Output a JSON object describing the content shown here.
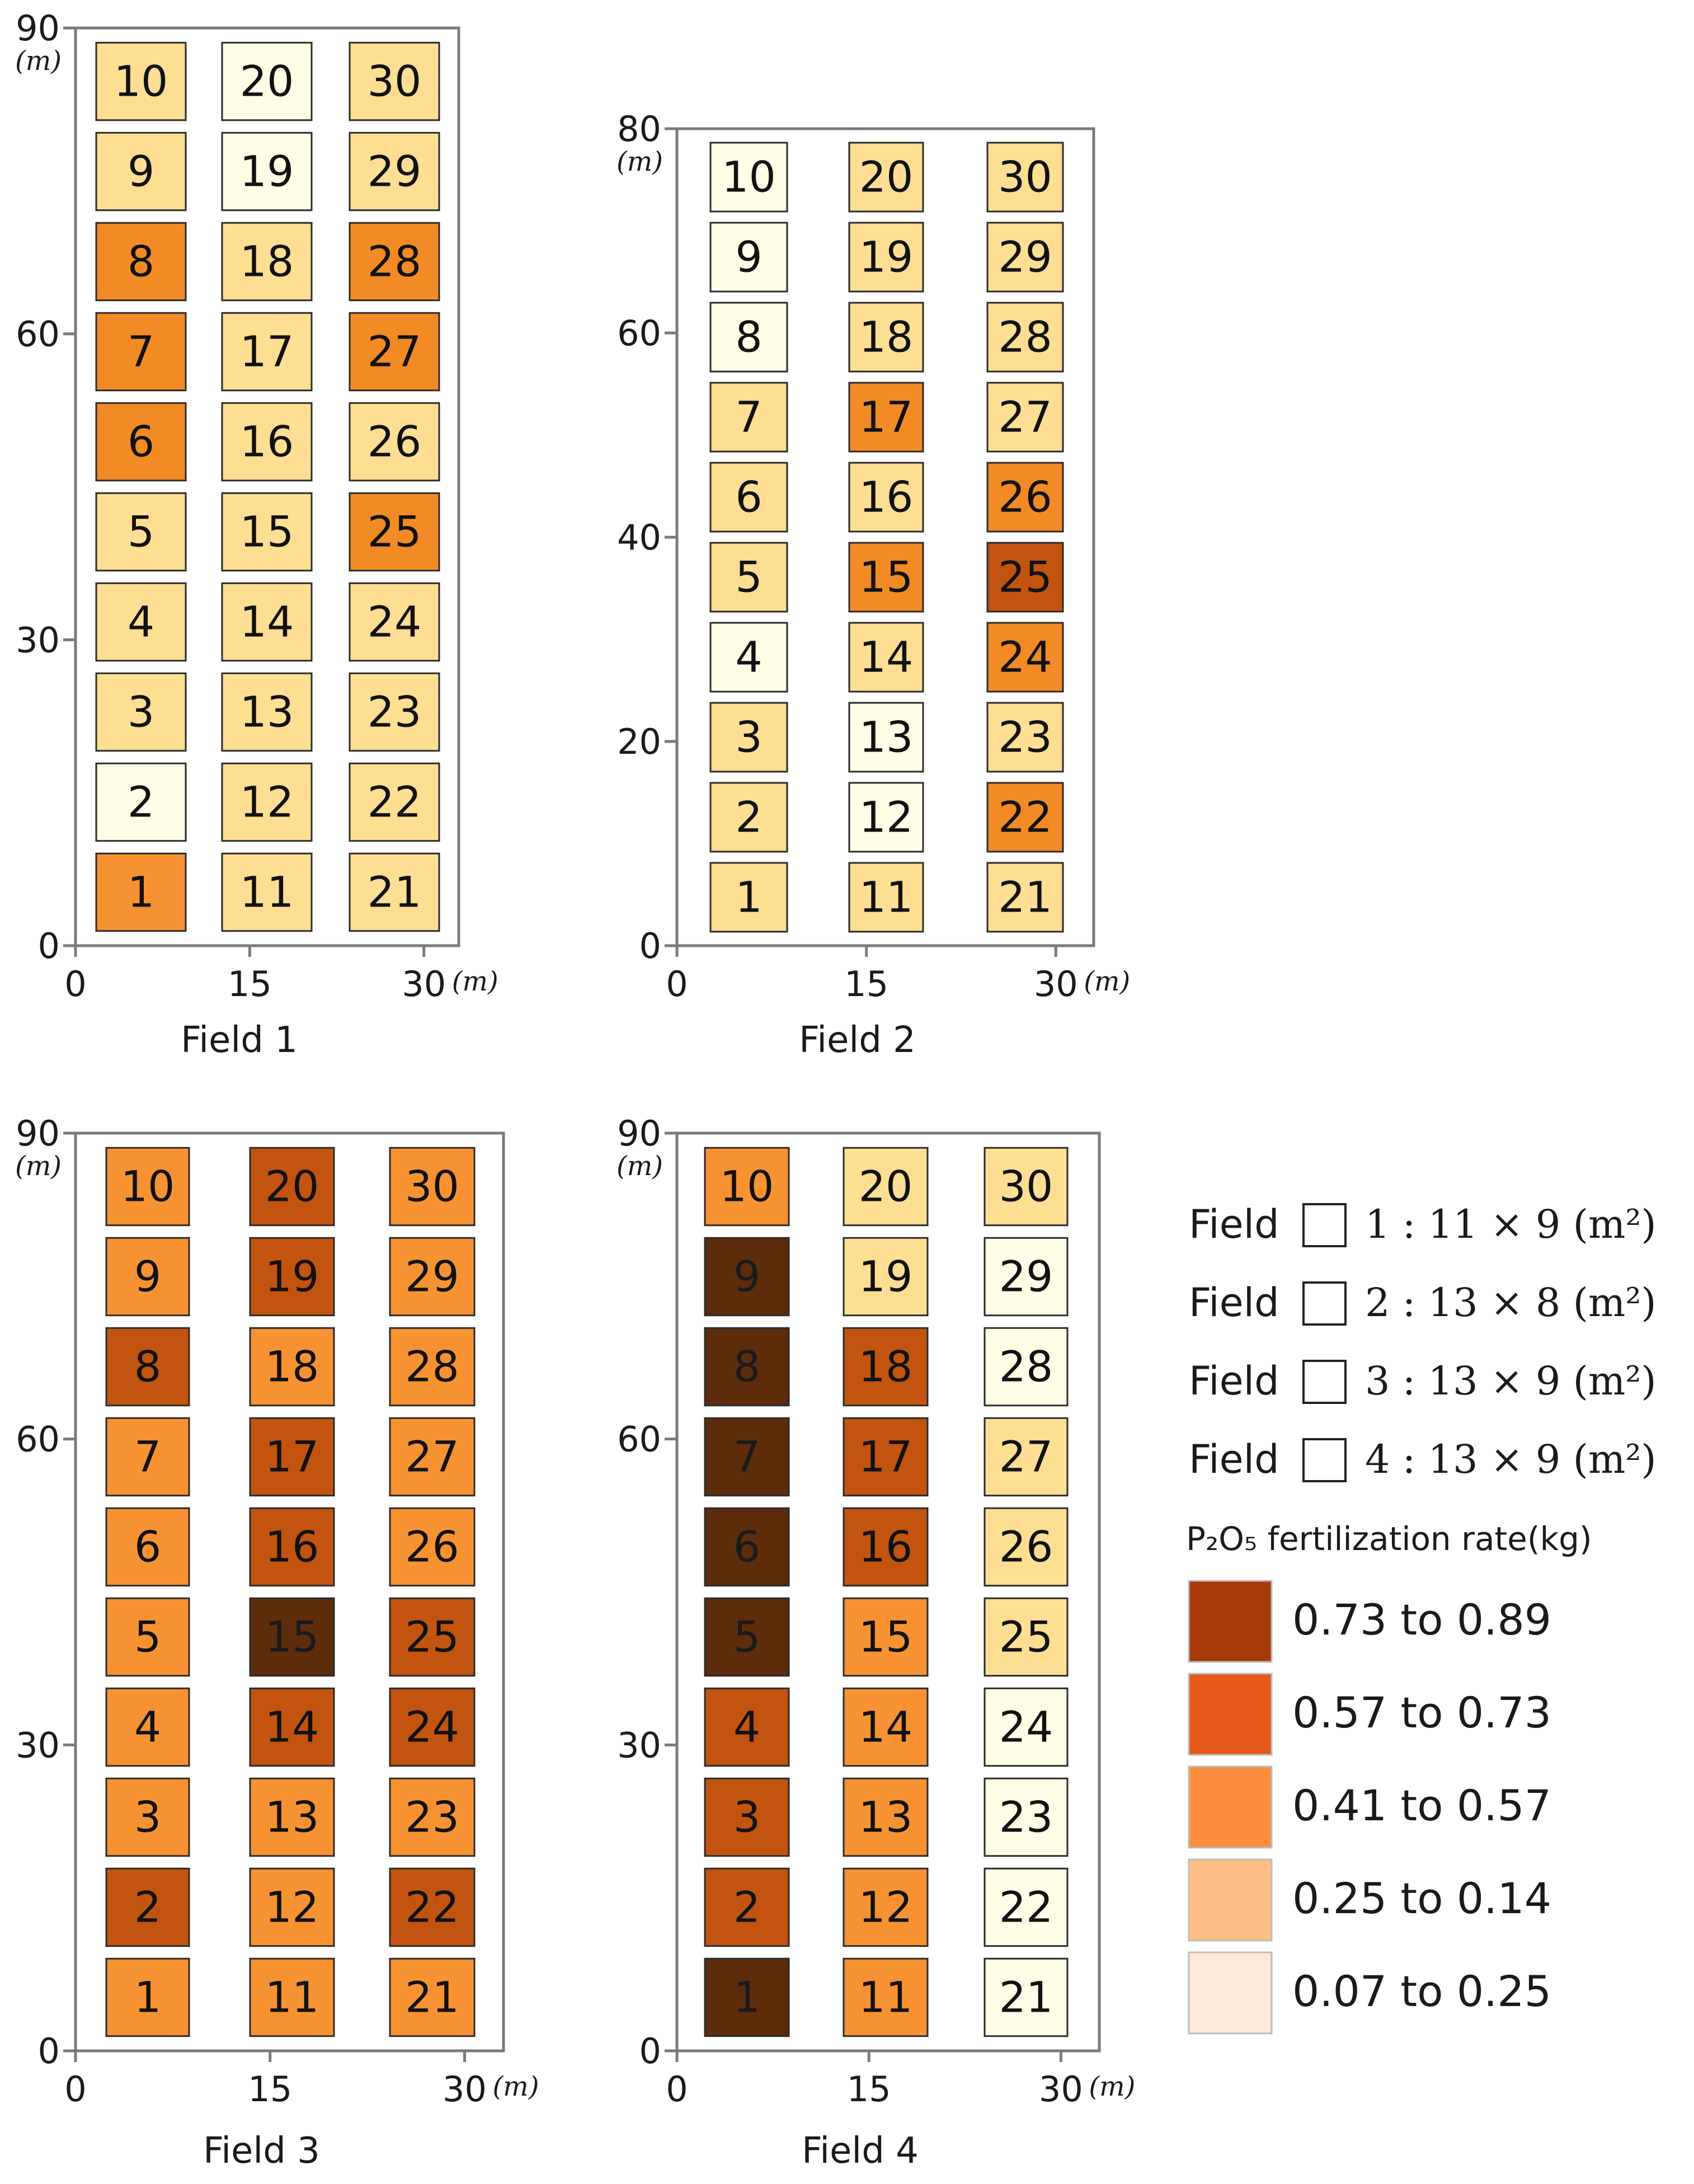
{
  "fields": [
    {
      "label": "Field 1",
      "axes": {
        "x_ticks": [
          "0",
          "15",
          "30"
        ],
        "y_ticks": [
          "0",
          "30",
          "60",
          "90"
        ],
        "y_max": 90,
        "unit": "(m)"
      },
      "plot_classes": [
        [
          "c",
          "d",
          "d"
        ],
        [
          "e",
          "d",
          "d"
        ],
        [
          "d",
          "d",
          "d"
        ],
        [
          "d",
          "d",
          "d"
        ],
        [
          "d",
          "d",
          "b"
        ],
        [
          "b",
          "d",
          "d"
        ],
        [
          "b",
          "d",
          "b"
        ],
        [
          "b",
          "d",
          "b"
        ],
        [
          "d",
          "e",
          "d"
        ],
        [
          "d",
          "e",
          "d"
        ]
      ]
    },
    {
      "label": "Field 2",
      "axes": {
        "x_ticks": [
          "0",
          "15",
          "30"
        ],
        "y_ticks": [
          "0",
          "20",
          "40",
          "60",
          "80"
        ],
        "y_max": 80,
        "unit": "(m)"
      },
      "plot_classes": [
        [
          "d",
          "d",
          "d"
        ],
        [
          "d",
          "e",
          "b"
        ],
        [
          "d",
          "e",
          "d"
        ],
        [
          "e",
          "d",
          "b"
        ],
        [
          "d",
          "b",
          "a"
        ],
        [
          "d",
          "d",
          "b"
        ],
        [
          "d",
          "b",
          "d"
        ],
        [
          "e",
          "d",
          "d"
        ],
        [
          "e",
          "d",
          "d"
        ],
        [
          "e",
          "d",
          "d"
        ]
      ]
    },
    {
      "label": "Field 3",
      "axes": {
        "x_ticks": [
          "0",
          "15",
          "30"
        ],
        "y_ticks": [
          "0",
          "30",
          "60",
          "90"
        ],
        "y_max": 90,
        "unit": "(m)"
      },
      "plot_classes": [
        [
          "c",
          "c",
          "c"
        ],
        [
          "a",
          "c",
          "a"
        ],
        [
          "c",
          "c",
          "c"
        ],
        [
          "c",
          "a",
          "a"
        ],
        [
          "c",
          "x",
          "a"
        ],
        [
          "c",
          "a",
          "c"
        ],
        [
          "c",
          "a",
          "c"
        ],
        [
          "a",
          "c",
          "c"
        ],
        [
          "c",
          "a",
          "c"
        ],
        [
          "c",
          "a",
          "c"
        ]
      ]
    },
    {
      "label": "Field 4",
      "axes": {
        "x_ticks": [
          "0",
          "15",
          "30"
        ],
        "y_ticks": [
          "0",
          "30",
          "60",
          "90"
        ],
        "y_max": 90,
        "unit": "(m)"
      },
      "plot_classes": [
        [
          "x",
          "c",
          "e"
        ],
        [
          "a",
          "c",
          "e"
        ],
        [
          "a",
          "c",
          "e"
        ],
        [
          "a",
          "c",
          "e"
        ],
        [
          "x",
          "c",
          "d"
        ],
        [
          "x",
          "a",
          "d"
        ],
        [
          "x",
          "a",
          "d"
        ],
        [
          "x",
          "a",
          "e"
        ],
        [
          "x",
          "d",
          "e"
        ],
        [
          "c",
          "d",
          "d"
        ]
      ]
    }
  ],
  "plot_numbers": [
    "1",
    "2",
    "3",
    "4",
    "5",
    "6",
    "7",
    "8",
    "9",
    "10",
    "11",
    "12",
    "13",
    "14",
    "15",
    "16",
    "17",
    "18",
    "19",
    "20",
    "21",
    "22",
    "23",
    "24",
    "25",
    "26",
    "27",
    "28",
    "29",
    "30"
  ],
  "palette": {
    "x": "#5c2c0b",
    "a": "#c2540f",
    "b": "#f28a25",
    "c": "#f79232",
    "d": "#fdde93",
    "e": "#fffde6"
  },
  "legend": {
    "field_sizes": [
      {
        "prefix": "Field",
        "text": "1 : 11 × 9 (m²)"
      },
      {
        "prefix": "Field",
        "text": "2 : 13 × 8 (m²)"
      },
      {
        "prefix": "Field",
        "text": "3 : 13 × 9 (m²)"
      },
      {
        "prefix": "Field",
        "text": "4 : 13 × 9 (m²)"
      }
    ],
    "title": "P₂O₅ fertilization rate(kg)",
    "classes": [
      {
        "label": "0.73 to 0.89",
        "color": "#a7390a"
      },
      {
        "label": "0.57 to 0.73",
        "color": "#e5591a"
      },
      {
        "label": "0.41 to 0.57",
        "color": "#fc8d3c"
      },
      {
        "label": "0.25 to 0.14",
        "color": "#fdbf85"
      },
      {
        "label": "0.07 to 0.25",
        "color": "#fee8d7"
      }
    ]
  }
}
